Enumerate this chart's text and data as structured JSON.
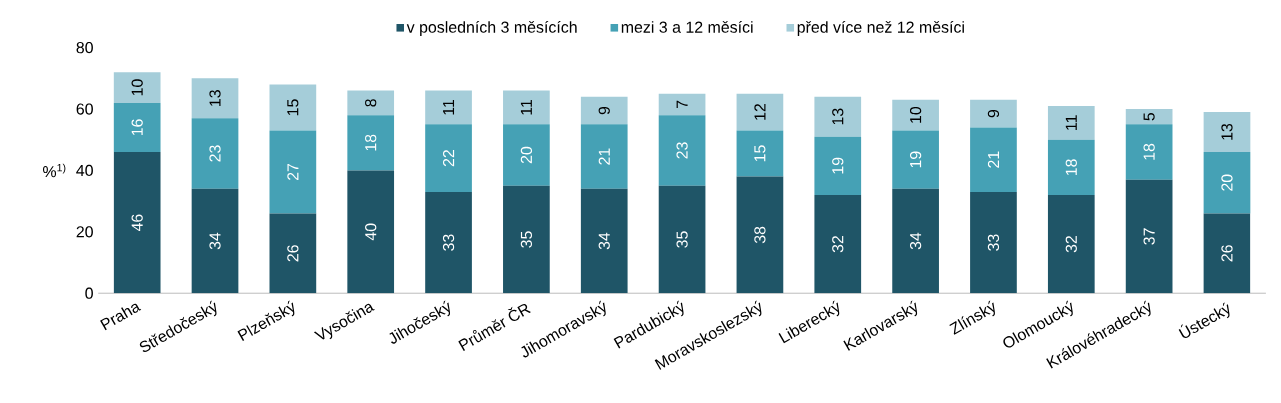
{
  "chart_data": {
    "type": "bar",
    "stacked": true,
    "ylabel": "%$^{1)}$",
    "categories": [
      "Praha",
      "Středočeský",
      "Plzeňský",
      "Vysočina",
      "Jihočeský",
      "Průměr ČR",
      "Jihomoravský",
      "Pardubický",
      "Moravskoslezský",
      "Liberecký",
      "Karlovarský",
      "Zlínský",
      "Olomoucký",
      "Královéhradecký",
      "Ústecký"
    ],
    "series": [
      {
        "name": "v posledních 3 měsících",
        "color": "#1f5567",
        "values": [
          46,
          34,
          26,
          40,
          33,
          35,
          34,
          35,
          38,
          32,
          34,
          33,
          32,
          37,
          26
        ]
      },
      {
        "name": "mezi 3 a 12 měsíci",
        "color": "#45a1b5",
        "values": [
          16,
          23,
          27,
          18,
          22,
          20,
          21,
          23,
          15,
          19,
          19,
          21,
          18,
          18,
          20
        ]
      },
      {
        "name": "před více než 12 měsíci",
        "color": "#a5cdd9",
        "values": [
          10,
          13,
          15,
          8,
          11,
          11,
          9,
          7,
          12,
          13,
          10,
          9,
          11,
          5,
          13
        ]
      }
    ],
    "ylim": [
      0,
      80
    ],
    "yticks": [
      0,
      20,
      40,
      60,
      80
    ],
    "grid": false,
    "legend": "top",
    "data_labels": true
  }
}
